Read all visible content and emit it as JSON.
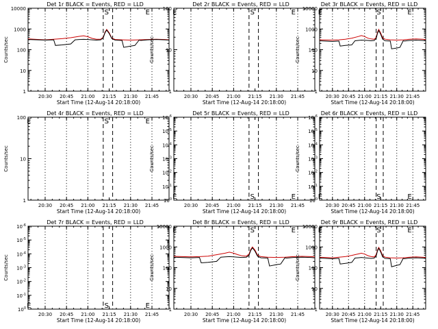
{
  "figure": {
    "x_ticks": [
      "20:30",
      "20:45",
      "21:00",
      "21:15",
      "21:30",
      "21:45"
    ],
    "x_tick_hours": [
      20.5,
      20.75,
      21.0,
      21.25,
      21.5,
      21.75
    ],
    "x_range": [
      20.3,
      21.95
    ],
    "xlabel": "Start Time (12-Aug-14 20:18:00)",
    "ylabel": "Counts/sec",
    "dashed_lines_at": [
      21.18,
      21.29
    ],
    "dotted_lines_at": [
      20.5,
      20.75,
      21.0,
      21.5,
      21.75
    ]
  },
  "chart_data": [
    {
      "type": "line",
      "title": "Det 1r BLACK = Events, RED = LLD",
      "yscale": "log",
      "ylim": [
        1,
        10000
      ],
      "y_ticks": [
        "1",
        "10",
        "100",
        "1000",
        "10000"
      ],
      "markers": [
        {
          "text": "S",
          "x": 21.22,
          "y": 10000
        },
        {
          "text": "E",
          "x": 21.7,
          "y": 10000
        }
      ],
      "series": [
        {
          "color": "#cc0000",
          "x": [
            20.3,
            20.5,
            20.6,
            20.7,
            20.8,
            20.9,
            20.95,
            21.0,
            21.05,
            21.1,
            21.15,
            21.18,
            21.2,
            21.22,
            21.25,
            21.28,
            21.32,
            21.4,
            21.5,
            21.6,
            21.7,
            21.8,
            21.9,
            21.95
          ],
          "y": [
            330,
            300,
            320,
            340,
            380,
            440,
            470,
            420,
            350,
            320,
            320,
            400,
            700,
            950,
            650,
            360,
            310,
            300,
            290,
            300,
            310,
            320,
            310,
            300
          ]
        },
        {
          "color": "#000000",
          "x": [
            20.3,
            20.5,
            20.6,
            20.62,
            20.7,
            20.8,
            20.85,
            20.9,
            20.95,
            21.0,
            21.05,
            21.1,
            21.15,
            21.18,
            21.2,
            21.22,
            21.25,
            21.28,
            21.32,
            21.4,
            21.42,
            21.5,
            21.55,
            21.6,
            21.62,
            21.7,
            21.8,
            21.9,
            21.95
          ],
          "y": [
            310,
            290,
            300,
            160,
            170,
            190,
            300,
            310,
            315,
            310,
            300,
            290,
            300,
            380,
            650,
            880,
            600,
            340,
            290,
            280,
            130,
            150,
            160,
            290,
            280,
            300,
            310,
            300,
            290
          ]
        }
      ]
    },
    {
      "type": "line",
      "title": "Det 2r BLACK = Events, RED = LLD",
      "yscale": "log",
      "ylim": [
        1,
        100
      ],
      "y_ticks": [
        "1",
        "10",
        "100"
      ],
      "markers": [
        {
          "text": "E",
          "x": 20.31,
          "y": 100
        },
        {
          "text": "S",
          "x": 21.22,
          "y": 100
        },
        {
          "text": "E",
          "x": 21.7,
          "y": 100
        }
      ],
      "series": []
    },
    {
      "type": "line",
      "title": "Det 3r BLACK = Events, RED = LLD",
      "yscale": "log",
      "ylim": [
        1,
        10000
      ],
      "y_ticks": [
        "1",
        "10",
        "100",
        "1000",
        "10000"
      ],
      "markers": [
        {
          "text": "E",
          "x": 20.31,
          "y": 10000
        },
        {
          "text": "S",
          "x": 21.22,
          "y": 10000
        },
        {
          "text": "E",
          "x": 21.7,
          "y": 10000
        }
      ],
      "series": [
        {
          "color": "#cc0000",
          "x": [
            20.3,
            20.5,
            20.6,
            20.7,
            20.8,
            20.9,
            20.95,
            21.0,
            21.05,
            21.1,
            21.15,
            21.18,
            21.2,
            21.22,
            21.25,
            21.28,
            21.32,
            21.4,
            21.5,
            21.6,
            21.7,
            21.8,
            21.9,
            21.95
          ],
          "y": [
            300,
            290,
            300,
            320,
            360,
            430,
            480,
            430,
            360,
            330,
            320,
            390,
            680,
            950,
            640,
            370,
            320,
            300,
            290,
            300,
            320,
            330,
            320,
            310
          ]
        },
        {
          "color": "#000000",
          "x": [
            20.3,
            20.5,
            20.6,
            20.62,
            20.7,
            20.8,
            20.85,
            20.9,
            20.95,
            21.0,
            21.05,
            21.1,
            21.15,
            21.18,
            21.2,
            21.22,
            21.25,
            21.28,
            21.32,
            21.4,
            21.42,
            21.5,
            21.55,
            21.6,
            21.62,
            21.7,
            21.8,
            21.9,
            21.95
          ],
          "y": [
            270,
            250,
            260,
            150,
            160,
            170,
            270,
            280,
            290,
            285,
            280,
            270,
            280,
            350,
            600,
            850,
            560,
            320,
            270,
            260,
            110,
            120,
            130,
            270,
            260,
            280,
            290,
            280,
            270
          ]
        }
      ]
    },
    {
      "type": "line",
      "title": "Det 4r BLACK = Events, RED = LLD",
      "yscale": "log",
      "ylim": [
        1,
        100
      ],
      "y_ticks": [
        "1",
        "10",
        "100"
      ],
      "markers": [
        {
          "text": "E",
          "x": 20.31,
          "y": 100
        },
        {
          "text": "S",
          "x": 21.22,
          "y": 100
        },
        {
          "text": "E",
          "x": 21.7,
          "y": 100
        }
      ],
      "series": []
    },
    {
      "type": "line",
      "title": "Det 5r BLACK = Events, RED = LLD",
      "yscale": "log",
      "ylim": [
        1,
        1000000
      ],
      "y_ticks": [
        "10^0",
        "10^-1",
        "10^-2",
        "10^-3",
        "10^-4",
        "10^-5",
        "10^-6"
      ],
      "markers": [
        {
          "text": "E",
          "x": 20.31,
          "y": 1
        },
        {
          "text": "S",
          "x": 21.22,
          "y": 1
        },
        {
          "text": "E",
          "x": 21.7,
          "y": 1
        }
      ],
      "series": []
    },
    {
      "type": "line",
      "title": "Det 6r BLACK = Events, RED = LLD",
      "yscale": "log",
      "ylim": [
        1,
        1000000
      ],
      "y_ticks": [
        "10^0",
        "10^-1",
        "10^-2",
        "10^-3",
        "10^-4",
        "10^-5",
        "10^-6"
      ],
      "markers": [
        {
          "text": "E",
          "x": 20.31,
          "y": 1
        },
        {
          "text": "S",
          "x": 21.22,
          "y": 1
        },
        {
          "text": "E",
          "x": 21.7,
          "y": 1
        }
      ],
      "series": []
    },
    {
      "type": "line",
      "title": "Det 7r BLACK = Events, RED = LLD",
      "yscale": "log",
      "ylim": [
        1,
        1000000
      ],
      "y_ticks": [
        "10^0",
        "10^-1",
        "10^-2",
        "10^-3",
        "10^-4",
        "10^-5",
        "10^-6"
      ],
      "markers": [
        {
          "text": "E",
          "x": 20.31,
          "y": 1
        },
        {
          "text": "S",
          "x": 21.22,
          "y": 1
        },
        {
          "text": "E",
          "x": 21.7,
          "y": 1
        }
      ],
      "series": []
    },
    {
      "type": "line",
      "title": "Det 8r BLACK = Events, RED = LLD",
      "yscale": "log",
      "ylim": [
        1,
        10000
      ],
      "y_ticks": [
        "1",
        "10",
        "100",
        "1000",
        "10000"
      ],
      "markers": [
        {
          "text": "E",
          "x": 20.31,
          "y": 10000
        },
        {
          "text": "S",
          "x": 21.22,
          "y": 10000
        },
        {
          "text": "E",
          "x": 21.7,
          "y": 10000
        }
      ],
      "series": [
        {
          "color": "#cc0000",
          "x": [
            20.3,
            20.5,
            20.6,
            20.7,
            20.8,
            20.9,
            20.95,
            21.0,
            21.05,
            21.1,
            21.15,
            21.18,
            21.2,
            21.22,
            21.25,
            21.28,
            21.32,
            21.4,
            21.5,
            21.6,
            21.7,
            21.8,
            21.9,
            21.95
          ],
          "y": [
            350,
            330,
            340,
            360,
            420,
            500,
            560,
            500,
            420,
            370,
            360,
            450,
            750,
            1000,
            700,
            400,
            340,
            320,
            310,
            320,
            340,
            350,
            340,
            330
          ]
        },
        {
          "color": "#000000",
          "x": [
            20.3,
            20.5,
            20.6,
            20.62,
            20.7,
            20.8,
            20.85,
            20.9,
            20.95,
            21.0,
            21.05,
            21.1,
            21.15,
            21.18,
            21.2,
            21.22,
            21.25,
            21.28,
            21.32,
            21.4,
            21.42,
            21.5,
            21.55,
            21.6,
            21.62,
            21.7,
            21.8,
            21.9,
            21.95
          ],
          "y": [
            320,
            300,
            310,
            170,
            180,
            200,
            320,
            330,
            340,
            330,
            320,
            310,
            320,
            400,
            680,
            900,
            620,
            350,
            300,
            290,
            120,
            140,
            150,
            300,
            290,
            310,
            320,
            310,
            300
          ]
        }
      ]
    },
    {
      "type": "line",
      "title": "Det 9r BLACK = Events, RED = LLD",
      "yscale": "log",
      "ylim": [
        1,
        10000
      ],
      "y_ticks": [
        "1",
        "10",
        "100",
        "1000",
        "10000"
      ],
      "markers": [
        {
          "text": "E",
          "x": 20.31,
          "y": 10000
        },
        {
          "text": "S",
          "x": 21.22,
          "y": 10000
        },
        {
          "text": "E",
          "x": 21.7,
          "y": 10000
        }
      ],
      "series": [
        {
          "color": "#cc0000",
          "x": [
            20.3,
            20.5,
            20.6,
            20.7,
            20.8,
            20.9,
            20.95,
            21.0,
            21.05,
            21.1,
            21.15,
            21.18,
            21.2,
            21.22,
            21.25,
            21.28,
            21.32,
            21.4,
            21.5,
            21.6,
            21.7,
            21.8,
            21.9,
            21.95
          ],
          "y": [
            320,
            300,
            320,
            340,
            390,
            460,
            500,
            450,
            380,
            340,
            330,
            420,
            700,
            950,
            660,
            380,
            320,
            300,
            290,
            300,
            320,
            330,
            320,
            310
          ]
        },
        {
          "color": "#000000",
          "x": [
            20.3,
            20.5,
            20.6,
            20.62,
            20.7,
            20.8,
            20.85,
            20.9,
            20.95,
            21.0,
            21.05,
            21.1,
            21.15,
            21.18,
            21.2,
            21.22,
            21.25,
            21.28,
            21.32,
            21.4,
            21.42,
            21.5,
            21.55,
            21.6,
            21.62,
            21.7,
            21.8,
            21.9,
            21.95
          ],
          "y": [
            290,
            270,
            280,
            150,
            160,
            180,
            290,
            300,
            310,
            300,
            290,
            280,
            290,
            370,
            620,
            860,
            580,
            330,
            280,
            270,
            110,
            130,
            140,
            280,
            270,
            290,
            300,
            290,
            280
          ]
        }
      ]
    }
  ]
}
